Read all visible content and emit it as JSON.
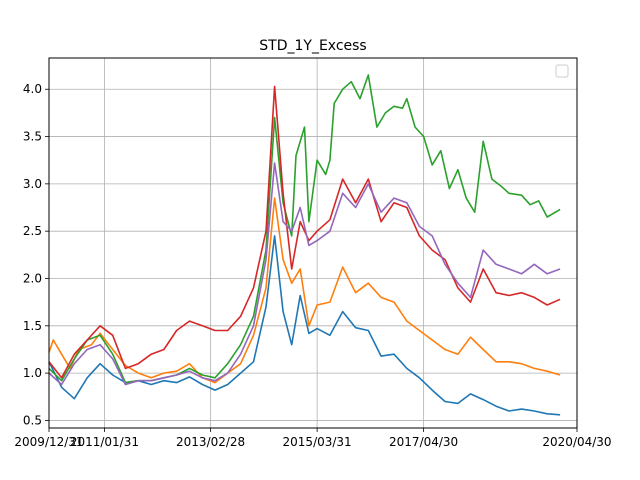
{
  "chart_data": {
    "type": "line",
    "title": "STD_1Y_Excess",
    "xlabel": "",
    "ylabel": "",
    "x_tick_labels": [
      "2009/12/31",
      "2011/01/31",
      "2013/02/28",
      "2015/03/31",
      "2017/04/30",
      "2020/04/30"
    ],
    "x_tick_dates": [
      "2009-12-31",
      "2011-01-31",
      "2013-02-28",
      "2015-03-31",
      "2017-04-30",
      "2020-04-30"
    ],
    "y_ticks": [
      0.5,
      1.0,
      1.5,
      2.0,
      2.5,
      3.0,
      3.5,
      4.0
    ],
    "y_tick_labels": [
      "0.5",
      "1.0",
      "1.5",
      "2.0",
      "2.5",
      "3.0",
      "3.5",
      "4.0"
    ],
    "xlim": [
      "2009-12-31",
      "2020-04-30"
    ],
    "ylim": [
      0.42,
      4.33
    ],
    "grid": true,
    "legend": {
      "placement": "top-right",
      "entries": []
    },
    "series": [
      {
        "color": "#1f77b4",
        "points": [
          [
            "2009-12-31",
            1.12
          ],
          [
            "2010-03-31",
            0.85
          ],
          [
            "2010-06-30",
            0.73
          ],
          [
            "2010-09-30",
            0.95
          ],
          [
            "2010-12-31",
            1.1
          ],
          [
            "2011-03-31",
            0.98
          ],
          [
            "2011-06-30",
            0.9
          ],
          [
            "2011-09-30",
            0.92
          ],
          [
            "2011-12-31",
            0.88
          ],
          [
            "2012-03-31",
            0.92
          ],
          [
            "2012-06-30",
            0.9
          ],
          [
            "2012-09-30",
            0.96
          ],
          [
            "2012-12-31",
            0.88
          ],
          [
            "2013-03-31",
            0.82
          ],
          [
            "2013-06-30",
            0.88
          ],
          [
            "2013-09-30",
            1.0
          ],
          [
            "2013-12-31",
            1.12
          ],
          [
            "2014-03-31",
            1.7
          ],
          [
            "2014-05-31",
            2.45
          ],
          [
            "2014-07-31",
            1.65
          ],
          [
            "2014-09-30",
            1.3
          ],
          [
            "2014-11-30",
            1.82
          ],
          [
            "2015-01-31",
            1.42
          ],
          [
            "2015-03-31",
            1.47
          ],
          [
            "2015-06-30",
            1.4
          ],
          [
            "2015-09-30",
            1.65
          ],
          [
            "2015-12-31",
            1.48
          ],
          [
            "2016-03-31",
            1.45
          ],
          [
            "2016-06-30",
            1.18
          ],
          [
            "2016-09-30",
            1.2
          ],
          [
            "2016-12-31",
            1.05
          ],
          [
            "2017-03-31",
            0.95
          ],
          [
            "2017-06-30",
            0.82
          ],
          [
            "2017-09-30",
            0.7
          ],
          [
            "2017-12-31",
            0.68
          ],
          [
            "2018-03-31",
            0.78
          ],
          [
            "2018-06-30",
            0.72
          ],
          [
            "2018-09-30",
            0.65
          ],
          [
            "2018-12-31",
            0.6
          ],
          [
            "2019-03-31",
            0.62
          ],
          [
            "2019-06-30",
            0.6
          ],
          [
            "2019-09-30",
            0.57
          ],
          [
            "2019-12-31",
            0.56
          ]
        ]
      },
      {
        "color": "#ff7f0e",
        "points": [
          [
            "2009-12-31",
            1.22
          ],
          [
            "2010-01-31",
            1.35
          ],
          [
            "2010-03-31",
            1.2
          ],
          [
            "2010-05-31",
            1.05
          ],
          [
            "2010-07-31",
            1.25
          ],
          [
            "2010-10-31",
            1.3
          ],
          [
            "2010-12-31",
            1.42
          ],
          [
            "2011-03-31",
            1.25
          ],
          [
            "2011-06-30",
            1.08
          ],
          [
            "2011-09-30",
            1.0
          ],
          [
            "2011-12-31",
            0.95
          ],
          [
            "2012-03-31",
            1.0
          ],
          [
            "2012-06-30",
            1.02
          ],
          [
            "2012-09-30",
            1.1
          ],
          [
            "2012-12-31",
            0.95
          ],
          [
            "2013-03-31",
            0.9
          ],
          [
            "2013-06-30",
            1.0
          ],
          [
            "2013-09-30",
            1.1
          ],
          [
            "2013-12-31",
            1.4
          ],
          [
            "2014-03-31",
            1.9
          ],
          [
            "2014-05-31",
            2.85
          ],
          [
            "2014-07-31",
            2.2
          ],
          [
            "2014-09-30",
            1.95
          ],
          [
            "2014-11-30",
            2.1
          ],
          [
            "2015-01-31",
            1.5
          ],
          [
            "2015-03-31",
            1.72
          ],
          [
            "2015-06-30",
            1.75
          ],
          [
            "2015-09-30",
            2.12
          ],
          [
            "2015-12-31",
            1.85
          ],
          [
            "2016-03-31",
            1.95
          ],
          [
            "2016-06-30",
            1.8
          ],
          [
            "2016-09-30",
            1.75
          ],
          [
            "2016-12-31",
            1.55
          ],
          [
            "2017-03-31",
            1.45
          ],
          [
            "2017-06-30",
            1.35
          ],
          [
            "2017-09-30",
            1.25
          ],
          [
            "2017-12-31",
            1.2
          ],
          [
            "2018-03-31",
            1.38
          ],
          [
            "2018-06-30",
            1.25
          ],
          [
            "2018-09-30",
            1.12
          ],
          [
            "2018-12-31",
            1.12
          ],
          [
            "2019-03-31",
            1.1
          ],
          [
            "2019-06-30",
            1.05
          ],
          [
            "2019-09-30",
            1.02
          ],
          [
            "2019-12-31",
            0.98
          ]
        ]
      },
      {
        "color": "#2ca02c",
        "points": [
          [
            "2009-12-31",
            1.05
          ],
          [
            "2010-03-31",
            0.92
          ],
          [
            "2010-06-30",
            1.15
          ],
          [
            "2010-09-30",
            1.35
          ],
          [
            "2010-12-31",
            1.4
          ],
          [
            "2011-03-31",
            1.2
          ],
          [
            "2011-06-30",
            0.9
          ],
          [
            "2011-09-30",
            0.92
          ],
          [
            "2011-12-31",
            0.92
          ],
          [
            "2012-03-31",
            0.95
          ],
          [
            "2012-06-30",
            0.98
          ],
          [
            "2012-09-30",
            1.05
          ],
          [
            "2012-12-31",
            0.98
          ],
          [
            "2013-03-31",
            0.95
          ],
          [
            "2013-06-30",
            1.1
          ],
          [
            "2013-09-30",
            1.3
          ],
          [
            "2013-12-31",
            1.6
          ],
          [
            "2014-03-31",
            2.3
          ],
          [
            "2014-05-31",
            3.7
          ],
          [
            "2014-07-31",
            2.8
          ],
          [
            "2014-09-30",
            2.45
          ],
          [
            "2014-10-31",
            3.3
          ],
          [
            "2014-12-31",
            3.6
          ],
          [
            "2015-01-31",
            2.6
          ],
          [
            "2015-03-31",
            3.25
          ],
          [
            "2015-05-31",
            3.1
          ],
          [
            "2015-06-30",
            3.25
          ],
          [
            "2015-07-31",
            3.85
          ],
          [
            "2015-09-30",
            4.0
          ],
          [
            "2015-11-30",
            4.08
          ],
          [
            "2016-01-31",
            3.9
          ],
          [
            "2016-03-31",
            4.15
          ],
          [
            "2016-05-31",
            3.6
          ],
          [
            "2016-07-31",
            3.75
          ],
          [
            "2016-09-30",
            3.82
          ],
          [
            "2016-11-30",
            3.8
          ],
          [
            "2016-12-31",
            3.9
          ],
          [
            "2017-02-28",
            3.6
          ],
          [
            "2017-04-30",
            3.5
          ],
          [
            "2017-06-30",
            3.2
          ],
          [
            "2017-08-31",
            3.35
          ],
          [
            "2017-10-31",
            2.95
          ],
          [
            "2017-12-31",
            3.15
          ],
          [
            "2018-02-28",
            2.85
          ],
          [
            "2018-04-30",
            2.7
          ],
          [
            "2018-06-30",
            3.45
          ],
          [
            "2018-08-31",
            3.05
          ],
          [
            "2018-10-31",
            2.98
          ],
          [
            "2018-12-31",
            2.9
          ],
          [
            "2019-03-31",
            2.88
          ],
          [
            "2019-05-31",
            2.78
          ],
          [
            "2019-07-31",
            2.82
          ],
          [
            "2019-09-30",
            2.65
          ],
          [
            "2019-12-31",
            2.73
          ]
        ]
      },
      {
        "color": "#d62728",
        "points": [
          [
            "2009-12-31",
            1.12
          ],
          [
            "2010-03-31",
            0.95
          ],
          [
            "2010-06-30",
            1.2
          ],
          [
            "2010-09-30",
            1.35
          ],
          [
            "2010-12-31",
            1.5
          ],
          [
            "2011-03-31",
            1.4
          ],
          [
            "2011-06-30",
            1.05
          ],
          [
            "2011-09-30",
            1.1
          ],
          [
            "2011-12-31",
            1.2
          ],
          [
            "2012-03-31",
            1.25
          ],
          [
            "2012-06-30",
            1.45
          ],
          [
            "2012-09-30",
            1.55
          ],
          [
            "2012-12-31",
            1.5
          ],
          [
            "2013-03-31",
            1.45
          ],
          [
            "2013-06-30",
            1.45
          ],
          [
            "2013-09-30",
            1.6
          ],
          [
            "2013-12-31",
            1.9
          ],
          [
            "2014-03-31",
            2.5
          ],
          [
            "2014-05-31",
            4.03
          ],
          [
            "2014-07-31",
            2.9
          ],
          [
            "2014-09-30",
            2.1
          ],
          [
            "2014-11-30",
            2.6
          ],
          [
            "2015-01-31",
            2.4
          ],
          [
            "2015-03-31",
            2.5
          ],
          [
            "2015-06-30",
            2.62
          ],
          [
            "2015-09-30",
            3.05
          ],
          [
            "2015-12-31",
            2.8
          ],
          [
            "2016-03-31",
            3.05
          ],
          [
            "2016-06-30",
            2.6
          ],
          [
            "2016-09-30",
            2.8
          ],
          [
            "2016-12-31",
            2.75
          ],
          [
            "2017-03-31",
            2.45
          ],
          [
            "2017-06-30",
            2.3
          ],
          [
            "2017-09-30",
            2.2
          ],
          [
            "2017-12-31",
            1.9
          ],
          [
            "2018-03-31",
            1.75
          ],
          [
            "2018-06-30",
            2.1
          ],
          [
            "2018-09-30",
            1.85
          ],
          [
            "2018-12-31",
            1.82
          ],
          [
            "2019-03-31",
            1.85
          ],
          [
            "2019-06-30",
            1.8
          ],
          [
            "2019-09-30",
            1.72
          ],
          [
            "2019-12-31",
            1.78
          ]
        ]
      },
      {
        "color": "#9467bd",
        "points": [
          [
            "2009-12-31",
            1.0
          ],
          [
            "2010-03-31",
            0.88
          ],
          [
            "2010-06-30",
            1.1
          ],
          [
            "2010-09-30",
            1.25
          ],
          [
            "2010-12-31",
            1.3
          ],
          [
            "2011-03-31",
            1.15
          ],
          [
            "2011-06-30",
            0.88
          ],
          [
            "2011-09-30",
            0.92
          ],
          [
            "2011-12-31",
            0.92
          ],
          [
            "2012-03-31",
            0.95
          ],
          [
            "2012-06-30",
            0.98
          ],
          [
            "2012-09-30",
            1.02
          ],
          [
            "2012-12-31",
            0.95
          ],
          [
            "2013-03-31",
            0.92
          ],
          [
            "2013-06-30",
            1.0
          ],
          [
            "2013-09-30",
            1.2
          ],
          [
            "2013-12-31",
            1.5
          ],
          [
            "2014-03-31",
            2.2
          ],
          [
            "2014-05-31",
            3.22
          ],
          [
            "2014-07-31",
            2.6
          ],
          [
            "2014-09-30",
            2.5
          ],
          [
            "2014-11-30",
            2.75
          ],
          [
            "2015-01-31",
            2.35
          ],
          [
            "2015-03-31",
            2.4
          ],
          [
            "2015-06-30",
            2.5
          ],
          [
            "2015-09-30",
            2.9
          ],
          [
            "2015-12-31",
            2.75
          ],
          [
            "2016-03-31",
            3.0
          ],
          [
            "2016-06-30",
            2.7
          ],
          [
            "2016-09-30",
            2.85
          ],
          [
            "2016-12-31",
            2.8
          ],
          [
            "2017-03-31",
            2.55
          ],
          [
            "2017-06-30",
            2.45
          ],
          [
            "2017-09-30",
            2.15
          ],
          [
            "2017-12-31",
            1.95
          ],
          [
            "2018-03-31",
            1.8
          ],
          [
            "2018-06-30",
            2.3
          ],
          [
            "2018-09-30",
            2.15
          ],
          [
            "2018-12-31",
            2.1
          ],
          [
            "2019-03-31",
            2.05
          ],
          [
            "2019-06-30",
            2.15
          ],
          [
            "2019-09-30",
            2.05
          ],
          [
            "2019-12-31",
            2.1
          ]
        ]
      }
    ]
  }
}
